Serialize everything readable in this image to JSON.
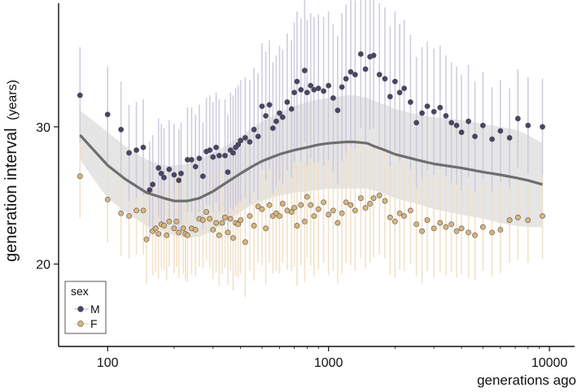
{
  "chart_data": {
    "type": "scatter",
    "xlabel": "generations ago",
    "ylabel": "generation interval",
    "ylabel_unit": "(years)",
    "x_scale": "log",
    "xlim": [
      60,
      13000
    ],
    "ylim": [
      14,
      39
    ],
    "x_ticks": [
      {
        "value": 100,
        "label": "100"
      },
      {
        "value": 1000,
        "label": "1000"
      },
      {
        "value": 10000,
        "label": "10000"
      }
    ],
    "y_ticks": [
      {
        "value": 20,
        "label": "20"
      },
      {
        "value": 30,
        "label": "30"
      }
    ],
    "legend": {
      "title": "sex",
      "position": "bottom-left"
    },
    "series": [
      {
        "name": "M",
        "color": "#4a4368",
        "err_color": "#cbc8da",
        "x": [
          75,
          100,
          115,
          125,
          135,
          145,
          155,
          160,
          170,
          175,
          180,
          190,
          200,
          210,
          215,
          230,
          240,
          250,
          260,
          270,
          280,
          290,
          300,
          310,
          320,
          340,
          350,
          360,
          370,
          380,
          390,
          400,
          420,
          440,
          460,
          480,
          500,
          520,
          540,
          560,
          580,
          600,
          620,
          650,
          680,
          700,
          720,
          750,
          780,
          800,
          830,
          860,
          900,
          950,
          1000,
          1050,
          1100,
          1150,
          1200,
          1260,
          1320,
          1400,
          1470,
          1540,
          1600,
          1700,
          1800,
          1900,
          2000,
          2100,
          2200,
          2350,
          2500,
          2650,
          2800,
          3000,
          3200,
          3400,
          3600,
          3800,
          4000,
          4300,
          4600,
          5000,
          5500,
          6000,
          6600,
          7200,
          8000,
          9300
        ],
        "y": [
          32.3,
          30.9,
          29.8,
          28.1,
          28.3,
          28.5,
          25.4,
          25.8,
          27.0,
          26.6,
          26.3,
          26.9,
          26.5,
          26.1,
          26.6,
          27.6,
          27.6,
          27.1,
          27.7,
          26.4,
          28.2,
          28.3,
          27.8,
          28.5,
          27.9,
          27.9,
          26.7,
          28.3,
          28.1,
          28.5,
          28.7,
          29.0,
          29.2,
          28.9,
          29.8,
          29.3,
          31.5,
          30.8,
          31.6,
          29.9,
          30.4,
          31.0,
          30.7,
          31.8,
          31.3,
          32.5,
          33.3,
          32.7,
          34.1,
          32.5,
          33.0,
          32.7,
          32.8,
          32.6,
          33.0,
          32.1,
          31.2,
          32.9,
          33.5,
          34.0,
          33.8,
          35.3,
          34.2,
          35.1,
          35.2,
          33.8,
          33.5,
          32.2,
          33.3,
          32.5,
          32.8,
          31.8,
          30.3,
          31.0,
          31.5,
          31.1,
          31.4,
          30.8,
          30.3,
          30.1,
          29.6,
          30.4,
          29.3,
          30.1,
          29.1,
          29.7,
          29.2,
          30.6,
          30.1,
          30.0
        ],
        "err": [
          3.5,
          3.5,
          3.5,
          3.5,
          3.5,
          3.5,
          3.5,
          3.6,
          3.6,
          3.6,
          3.6,
          3.6,
          3.7,
          3.7,
          3.7,
          3.8,
          3.8,
          3.8,
          3.9,
          3.9,
          3.9,
          4.0,
          4.0,
          4.0,
          4.1,
          4.1,
          4.2,
          4.2,
          4.2,
          4.3,
          4.3,
          4.4,
          4.4,
          4.5,
          4.5,
          4.6,
          4.6,
          4.7,
          4.7,
          4.8,
          4.8,
          4.9,
          4.9,
          5.0,
          5.0,
          5.1,
          5.1,
          5.2,
          5.2,
          5.3,
          5.3,
          5.3,
          5.4,
          5.4,
          5.4,
          5.4,
          5.4,
          5.4,
          5.4,
          5.4,
          5.4,
          5.4,
          5.4,
          5.3,
          5.3,
          5.2,
          5.2,
          5.1,
          5.1,
          5.0,
          5.0,
          4.9,
          4.8,
          4.8,
          4.7,
          4.6,
          4.5,
          4.4,
          4.4,
          4.3,
          4.2,
          4.1,
          4.0,
          3.9,
          3.8,
          3.7,
          3.6,
          3.6,
          3.5,
          3.5
        ]
      },
      {
        "name": "F",
        "color": "#d9b47a",
        "err_color": "#efdfc3",
        "x": [
          75,
          100,
          115,
          125,
          135,
          145,
          150,
          160,
          165,
          170,
          175,
          180,
          185,
          190,
          200,
          205,
          210,
          220,
          225,
          230,
          240,
          250,
          260,
          270,
          280,
          290,
          300,
          310,
          320,
          330,
          340,
          350,
          360,
          370,
          380,
          390,
          400,
          420,
          440,
          460,
          480,
          500,
          520,
          540,
          560,
          580,
          600,
          620,
          650,
          680,
          700,
          720,
          750,
          780,
          800,
          830,
          860,
          900,
          950,
          1000,
          1050,
          1100,
          1150,
          1200,
          1260,
          1320,
          1400,
          1470,
          1540,
          1600,
          1700,
          1800,
          1900,
          2000,
          2100,
          2200,
          2350,
          2500,
          2650,
          2800,
          3000,
          3200,
          3400,
          3600,
          3800,
          4000,
          4300,
          4600,
          5000,
          5500,
          6000,
          6600,
          7200,
          8000,
          9300
        ],
        "y": [
          26.4,
          24.7,
          23.7,
          23.5,
          23.9,
          23.9,
          21.8,
          22.4,
          22.6,
          22.2,
          22.9,
          22.8,
          22.1,
          23.1,
          22.6,
          23.1,
          22.3,
          22.6,
          22.2,
          22.1,
          22.6,
          22.5,
          23.3,
          23.2,
          23.8,
          23.3,
          22.5,
          23.0,
          22.1,
          23.0,
          23.4,
          22.3,
          23.3,
          21.9,
          23.0,
          22.9,
          23.2,
          21.6,
          23.5,
          22.8,
          24.2,
          24.0,
          22.6,
          24.3,
          23.5,
          23.7,
          23.5,
          24.4,
          23.9,
          23.8,
          24.1,
          22.8,
          24.3,
          23.1,
          24.9,
          24.3,
          23.5,
          24.0,
          24.5,
          23.6,
          23.9,
          23.0,
          23.7,
          24.5,
          24.3,
          23.9,
          24.8,
          24.1,
          24.4,
          24.8,
          25.0,
          24.6,
          23.4,
          23.1,
          23.7,
          23.5,
          23.9,
          22.9,
          22.4,
          23.2,
          22.6,
          23.0,
          22.7,
          22.9,
          22.4,
          22.6,
          22.3,
          22.1,
          22.7,
          22.3,
          22.5,
          23.2,
          23.4,
          23.2,
          23.5
        ],
        "err": [
          3.1,
          3.1,
          3.1,
          3.1,
          3.2,
          3.2,
          3.2,
          3.2,
          3.2,
          3.2,
          3.2,
          3.2,
          3.3,
          3.3,
          3.3,
          3.3,
          3.3,
          3.3,
          3.4,
          3.4,
          3.4,
          3.4,
          3.5,
          3.5,
          3.5,
          3.6,
          3.6,
          3.6,
          3.7,
          3.7,
          3.7,
          3.8,
          3.8,
          3.8,
          3.9,
          3.9,
          3.9,
          4.0,
          4.0,
          4.0,
          4.1,
          4.1,
          4.1,
          4.2,
          4.2,
          4.2,
          4.2,
          4.3,
          4.3,
          4.3,
          4.3,
          4.4,
          4.4,
          4.4,
          4.4,
          4.4,
          4.4,
          4.4,
          4.4,
          4.4,
          4.4,
          4.4,
          4.4,
          4.4,
          4.4,
          4.4,
          4.4,
          4.4,
          4.3,
          4.3,
          4.3,
          4.2,
          4.2,
          4.1,
          4.1,
          4.0,
          3.9,
          3.8,
          3.8,
          3.7,
          3.6,
          3.6,
          3.5,
          3.5,
          3.4,
          3.4,
          3.3,
          3.3,
          3.2,
          3.2,
          3.2,
          3.1,
          3.1,
          3.1,
          3.1
        ]
      }
    ],
    "trend": {
      "line_color": "#6e6e6e",
      "band_color": "#dcdcdc",
      "x": [
        75,
        90,
        100,
        120,
        150,
        180,
        200,
        230,
        260,
        300,
        350,
        400,
        450,
        500,
        600,
        700,
        800,
        900,
        1000,
        1100,
        1200,
        1300,
        1400,
        1500,
        1600,
        1800,
        2000,
        2500,
        3000,
        4000,
        5000,
        6000,
        7000,
        8000,
        9300
      ],
      "y": [
        29.4,
        28.0,
        27.2,
        26.2,
        25.2,
        24.8,
        24.6,
        24.6,
        24.8,
        25.3,
        26.0,
        26.6,
        27.1,
        27.5,
        28.0,
        28.3,
        28.5,
        28.7,
        28.8,
        28.85,
        28.9,
        28.9,
        28.85,
        28.8,
        28.6,
        28.3,
        28.0,
        27.6,
        27.3,
        27.0,
        26.7,
        26.5,
        26.3,
        26.1,
        25.8
      ],
      "band_upper": [
        31.2,
        30.2,
        29.6,
        28.6,
        27.6,
        27.2,
        27.2,
        27.3,
        27.6,
        28.1,
        28.7,
        29.3,
        29.9,
        30.4,
        31.0,
        31.5,
        31.8,
        32.0,
        32.1,
        32.2,
        32.3,
        32.3,
        32.2,
        32.1,
        31.9,
        31.6,
        31.3,
        30.9,
        30.7,
        30.5,
        30.2,
        30.0,
        29.8,
        29.4,
        28.8
      ],
      "band_lower": [
        27.6,
        25.8,
        24.8,
        23.8,
        22.8,
        22.4,
        22.1,
        21.9,
        22.0,
        22.4,
        23.2,
        23.8,
        24.3,
        24.6,
        25.0,
        25.2,
        25.3,
        25.4,
        25.5,
        25.5,
        25.5,
        25.5,
        25.5,
        25.5,
        25.4,
        25.1,
        24.8,
        24.4,
        24.0,
        23.6,
        23.3,
        23.0,
        22.8,
        22.7,
        22.7
      ]
    }
  }
}
